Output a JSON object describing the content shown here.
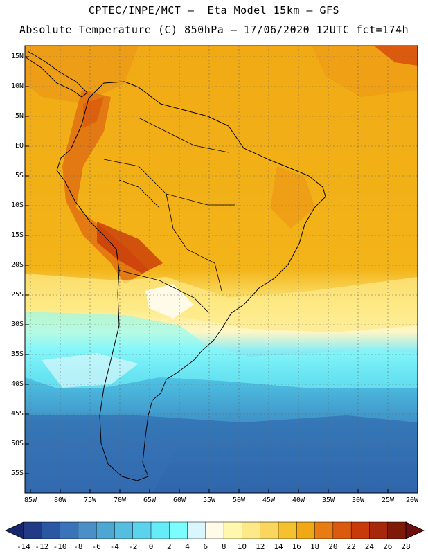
{
  "header": {
    "title_line1": "CPTEC/INPE/MCT –  Eta Model 15km – GFS",
    "title_line2": "Absolute Temperature (C) 850hPa – 17/06/2020 12UTC fct=174h"
  },
  "map": {
    "lat_labels": [
      "15N",
      "10N",
      "5N",
      "EQ",
      "5S",
      "10S",
      "15S",
      "20S",
      "25S",
      "30S",
      "35S",
      "40S",
      "45S",
      "50S",
      "55S"
    ],
    "lon_labels": [
      "85W",
      "80W",
      "75W",
      "70W",
      "65W",
      "60W",
      "55W",
      "50W",
      "45W",
      "40W",
      "35W",
      "30W",
      "25W",
      "20W"
    ]
  },
  "colorbar": {
    "ticks": [
      "-14",
      "-12",
      "-10",
      "-8",
      "-6",
      "-4",
      "-2",
      "0",
      "2",
      "4",
      "6",
      "8",
      "10",
      "12",
      "14",
      "16",
      "18",
      "20",
      "22",
      "24",
      "26",
      "28"
    ],
    "colors": [
      "#203a86",
      "#2a56a2",
      "#3a73b8",
      "#4a8fc8",
      "#4ea6d2",
      "#55bde0",
      "#5cd3ec",
      "#66ecf7",
      "#7cfdfd",
      "#d8f6fb",
      "#fffbe8",
      "#fff8ae",
      "#fde987",
      "#fbd65e",
      "#f5c12f",
      "#f0a816",
      "#e87c12",
      "#dc5a0d",
      "#c83a0a",
      "#a62709",
      "#7f1a09"
    ]
  }
}
